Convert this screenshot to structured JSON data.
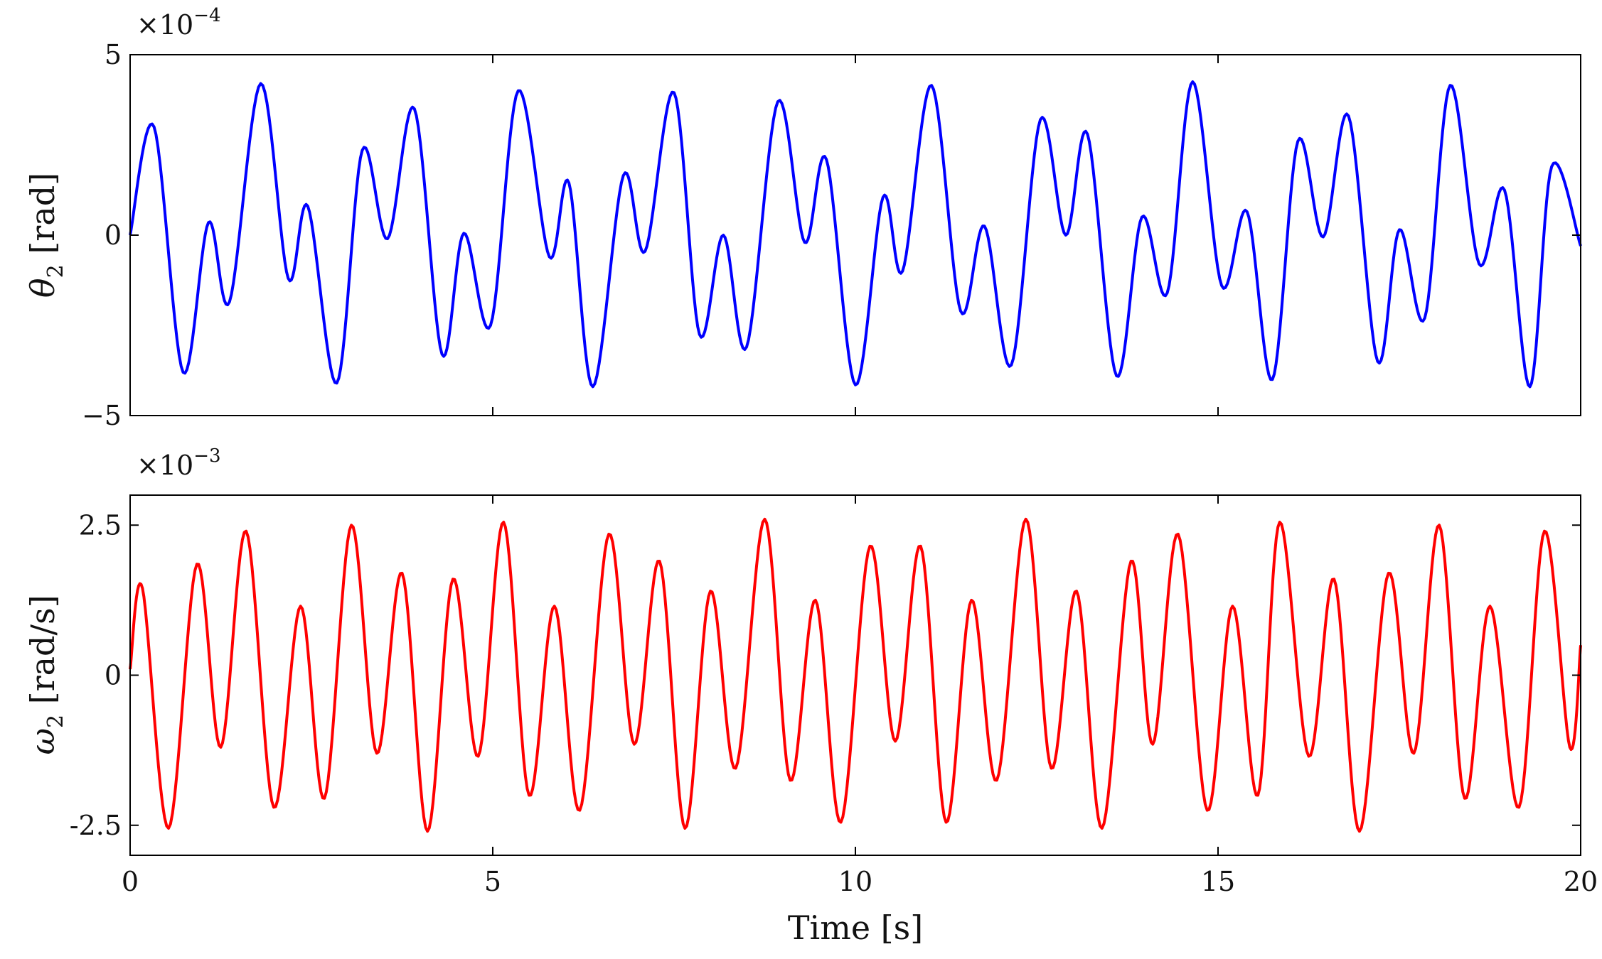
{
  "chart_data": [
    {
      "type": "line",
      "ylabel": "θ2 [rad]",
      "ylabel_symbol": "θ",
      "ylabel_sub": "2",
      "ylabel_unit": " [rad]",
      "scale_label": "×10",
      "scale_exp": "−4",
      "xlim": [
        0,
        20
      ],
      "ylim": [
        -5,
        5
      ],
      "yticks": [
        5,
        0,
        -5
      ],
      "ytick_labels": [
        "5",
        "0",
        "−5"
      ],
      "xticks": [
        0,
        5,
        10,
        15,
        20
      ],
      "xtick_labels": [
        "",
        "",
        "",
        "",
        ""
      ],
      "grid": false,
      "series": [
        {
          "color": "#0000ff",
          "x": [
            0,
            0.33,
            0.73,
            1.08,
            1.37,
            1.8,
            2.18,
            2.45,
            2.85,
            3.2,
            3.55,
            3.92,
            4.3,
            4.6,
            4.97,
            5.35,
            5.78,
            6.05,
            6.38,
            6.8,
            7.1,
            7.5,
            7.85,
            8.18,
            8.5,
            8.93,
            9.3,
            9.6,
            10.0,
            10.38,
            10.65,
            11.05,
            11.45,
            11.78,
            12.15,
            12.55,
            12.9,
            13.2,
            13.6,
            13.95,
            14.3,
            14.65,
            15.05,
            15.4,
            15.75,
            16.1,
            16.45,
            16.8,
            17.2,
            17.5,
            17.85,
            18.2,
            18.6,
            18.95,
            19.3,
            19.6,
            20.0
          ],
          "y": [
            0,
            3.0,
            -3.8,
            0.35,
            -1.85,
            4.2,
            -1.2,
            0.8,
            -4.1,
            2.35,
            -0.1,
            3.5,
            -3.3,
            0.05,
            -2.5,
            4.0,
            -0.6,
            1.45,
            -4.2,
            1.65,
            -0.45,
            3.95,
            -2.75,
            0.0,
            -3.1,
            3.7,
            -0.2,
            2.1,
            -4.15,
            1.05,
            -1.0,
            4.15,
            -2.1,
            0.25,
            -3.6,
            3.2,
            0.0,
            2.8,
            -3.9,
            0.5,
            -1.6,
            4.25,
            -1.4,
            0.65,
            -4.0,
            2.6,
            -0.05,
            3.3,
            -3.5,
            0.15,
            -2.3,
            4.15,
            -0.8,
            1.25,
            -4.2,
            1.9,
            -0.3
          ]
        }
      ]
    },
    {
      "type": "line",
      "xlabel": "Time [s]",
      "ylabel": "ω2 [rad/s]",
      "ylabel_symbol": "ω",
      "ylabel_sub": "2",
      "ylabel_unit": " [rad/s]",
      "scale_label": "×10",
      "scale_exp": "−3",
      "xlim": [
        0,
        20
      ],
      "ylim": [
        -3,
        3
      ],
      "yticks": [
        2.5,
        0,
        -2.5
      ],
      "ytick_labels": [
        "2.5",
        "0",
        "-2.5"
      ],
      "xticks": [
        0,
        5,
        10,
        15,
        20
      ],
      "xtick_labels": [
        "0",
        "5",
        "10",
        "15",
        "20"
      ],
      "grid": false,
      "series": [
        {
          "color": "#ff0000",
          "x": [
            0,
            0.17,
            0.53,
            0.92,
            1.25,
            1.6,
            1.98,
            2.35,
            2.68,
            3.05,
            3.4,
            3.75,
            4.1,
            4.45,
            4.8,
            5.15,
            5.5,
            5.85,
            6.2,
            6.6,
            6.95,
            7.3,
            7.65,
            8.0,
            8.35,
            8.75,
            9.1,
            9.45,
            9.8,
            10.2,
            10.55,
            10.9,
            11.25,
            11.6,
            11.95,
            12.35,
            12.7,
            13.05,
            13.4,
            13.8,
            14.1,
            14.45,
            14.85,
            15.2,
            15.55,
            15.85,
            16.25,
            16.6,
            16.95,
            17.35,
            17.7,
            18.05,
            18.4,
            18.75,
            19.15,
            19.5,
            19.85,
            20.0
          ],
          "y": [
            0.1,
            1.45,
            -2.55,
            1.85,
            -1.2,
            2.4,
            -2.2,
            1.15,
            -2.05,
            2.5,
            -1.3,
            1.7,
            -2.6,
            1.6,
            -1.35,
            2.55,
            -2.0,
            1.15,
            -2.25,
            2.35,
            -1.15,
            1.9,
            -2.55,
            1.4,
            -1.55,
            2.6,
            -1.75,
            1.25,
            -2.45,
            2.15,
            -1.1,
            2.15,
            -2.45,
            1.25,
            -1.75,
            2.6,
            -1.55,
            1.4,
            -2.55,
            1.9,
            -1.15,
            2.35,
            -2.25,
            1.15,
            -2.0,
            2.55,
            -1.35,
            1.6,
            -2.6,
            1.7,
            -1.3,
            2.5,
            -2.05,
            1.15,
            -2.2,
            2.4,
            -1.2,
            0.5
          ]
        }
      ]
    }
  ]
}
